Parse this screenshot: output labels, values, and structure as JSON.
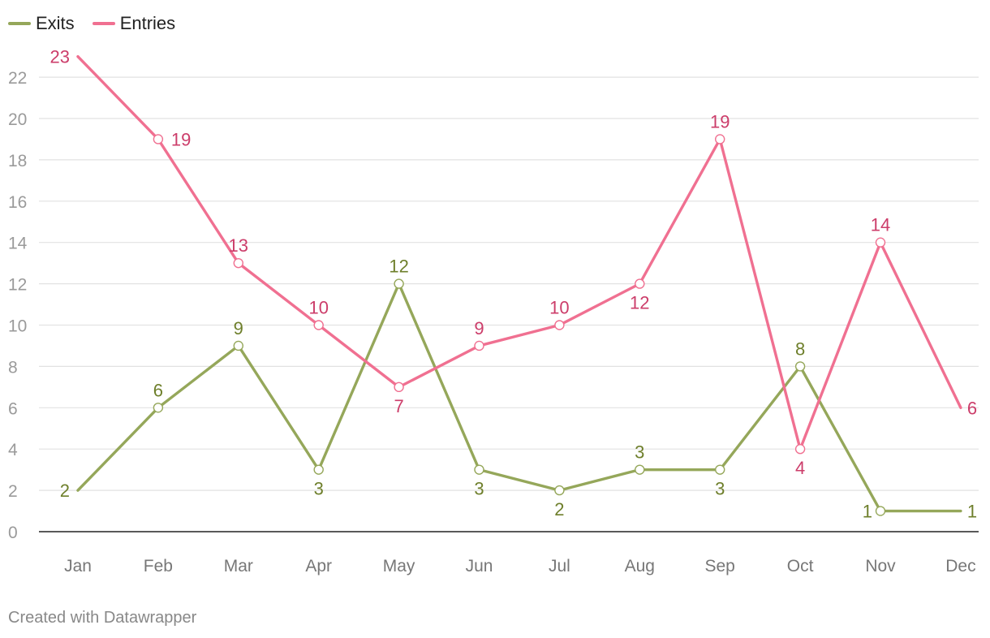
{
  "chart_data": {
    "type": "line",
    "categories": [
      "Jan",
      "Feb",
      "Mar",
      "Apr",
      "May",
      "Jun",
      "Jul",
      "Aug",
      "Sep",
      "Oct",
      "Nov",
      "Dec"
    ],
    "series": [
      {
        "name": "Exits",
        "color": "#95a75a",
        "label_color": "#6e7f2b",
        "values": [
          2,
          6,
          9,
          3,
          12,
          3,
          2,
          3,
          3,
          8,
          1,
          1
        ]
      },
      {
        "name": "Entries",
        "color": "#f07091",
        "label_color": "#cc3d6a",
        "values": [
          23,
          19,
          13,
          10,
          7,
          9,
          10,
          12,
          19,
          4,
          14,
          6
        ]
      }
    ],
    "y_ticks": [
      0,
      2,
      4,
      6,
      8,
      10,
      12,
      14,
      16,
      18,
      20,
      22
    ],
    "ylim": [
      0,
      23
    ],
    "grid": true,
    "legend_position": "top-left",
    "title": "",
    "xlabel": "",
    "ylabel": ""
  },
  "footer": {
    "credit": "Created with Datawrapper"
  }
}
